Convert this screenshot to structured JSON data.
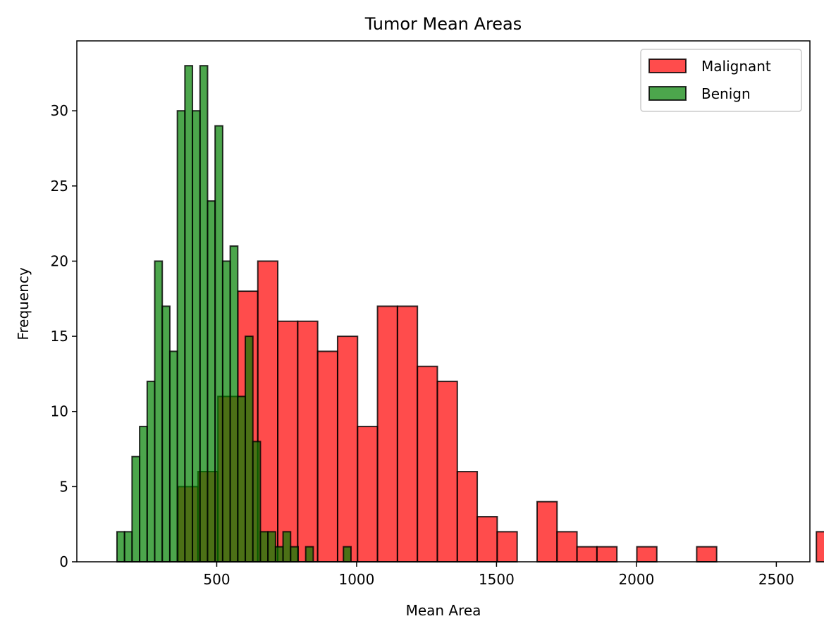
{
  "chart_data": {
    "type": "histogram",
    "title": "Tumor Mean Areas",
    "xlabel": "Mean Area",
    "ylabel": "Frequency",
    "xlim": [
      0,
      2620
    ],
    "ylim": [
      0,
      34.65
    ],
    "xticks": [
      500,
      1000,
      1500,
      2000,
      2500
    ],
    "yticks": [
      0,
      5,
      10,
      15,
      20,
      25,
      30
    ],
    "legend_position": "top-right",
    "grid": false,
    "series": [
      {
        "name": "Malignant",
        "color": "#ff0000",
        "opacity": 0.7,
        "bin_start": 361.6,
        "bin_width": 71.3,
        "counts": [
          5,
          6,
          11,
          18,
          20,
          16,
          16,
          14,
          15,
          9,
          17,
          17,
          13,
          12,
          6,
          3,
          2,
          0,
          4,
          2,
          1,
          1,
          0,
          1,
          0,
          0,
          1,
          0,
          0,
          0,
          0,
          0,
          2
        ]
      },
      {
        "name": "Benign",
        "color": "#008000",
        "opacity": 0.7,
        "bin_start": 143.5,
        "bin_width": 26.98,
        "counts": [
          2,
          2,
          7,
          9,
          12,
          20,
          17,
          14,
          30,
          33,
          30,
          33,
          24,
          29,
          20,
          21,
          11,
          15,
          8,
          2,
          2,
          1,
          2,
          1,
          0,
          1,
          0,
          0,
          0,
          0,
          1
        ]
      }
    ]
  }
}
